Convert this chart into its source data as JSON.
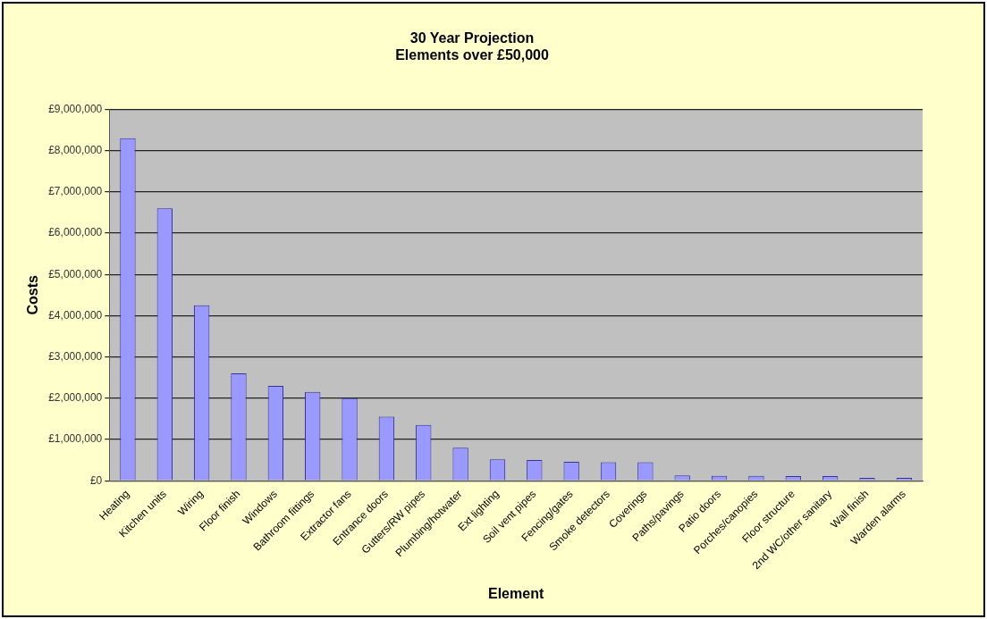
{
  "chart_data": {
    "type": "bar",
    "title": [
      "30 Year Projection",
      "Elements over £50,000"
    ],
    "xlabel": "Element",
    "ylabel": "Costs",
    "categories": [
      "Heating",
      "Kitchen units",
      "Wiring",
      "Floor finish",
      "Windows",
      "Bathroom fittings",
      "Extractor fans",
      "Entrance doors",
      "Gutters/RW pipes",
      "Plumbing/hotwater",
      "Ext lighting",
      "Soil vent pipes",
      "Fencing/gates",
      "Smoke detectors",
      "Coverings",
      "Paths/pavings",
      "Patio doors",
      "Porches/canopies",
      "Floor structure",
      "2nd WC/other sanitary",
      "Wall finish",
      "Warden alarms"
    ],
    "values": [
      8300000,
      6600000,
      4250000,
      2600000,
      2300000,
      2150000,
      2000000,
      1550000,
      1350000,
      800000,
      520000,
      500000,
      460000,
      450000,
      450000,
      130000,
      120000,
      120000,
      110000,
      110000,
      70000,
      70000
    ],
    "color": "#9999ff",
    "ylim": [
      0,
      9000000
    ],
    "yticks": [
      {
        "value": 0,
        "label": "£0"
      },
      {
        "value": 1000000,
        "label": "£1,000,000"
      },
      {
        "value": 2000000,
        "label": "£2,000,000"
      },
      {
        "value": 3000000,
        "label": "£3,000,000"
      },
      {
        "value": 4000000,
        "label": "£4,000,000"
      },
      {
        "value": 5000000,
        "label": "£5,000,000"
      },
      {
        "value": 6000000,
        "label": "£6,000,000"
      },
      {
        "value": 7000000,
        "label": "£7,000,000"
      },
      {
        "value": 8000000,
        "label": "£8,000,000"
      },
      {
        "value": 9000000,
        "label": "£9,000,000"
      }
    ],
    "grid": "y",
    "legend": false
  }
}
